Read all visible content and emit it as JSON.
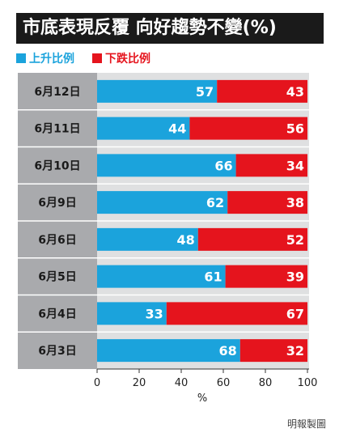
{
  "header": {
    "title": "市底表現反覆 向好趨勢不變(%)"
  },
  "colors": {
    "up": "#1ba3dc",
    "down": "#e5141d",
    "label_bg": "#a9aaad",
    "grid_bg": "#dfe0e1"
  },
  "chart_data": {
    "type": "bar",
    "orientation": "horizontal",
    "stacked": true,
    "title": "市底表現反覆 向好趨勢不變(%)",
    "categories": [
      "6月12日",
      "6月11日",
      "6月10日",
      "6月9日",
      "6月6日",
      "6月5日",
      "6月4日",
      "6月3日"
    ],
    "series": [
      {
        "name": "上升比例",
        "values": [
          57,
          44,
          66,
          62,
          48,
          61,
          33,
          68
        ]
      },
      {
        "name": "下跌比例",
        "values": [
          43,
          56,
          34,
          38,
          52,
          39,
          67,
          32
        ]
      }
    ],
    "xlabel": "%",
    "ylabel": "",
    "xlim": [
      0,
      100
    ],
    "xticks": [
      "0",
      "20",
      "40",
      "60",
      "80",
      "100"
    ],
    "legend": "top-left"
  },
  "credit": "明報製圖"
}
